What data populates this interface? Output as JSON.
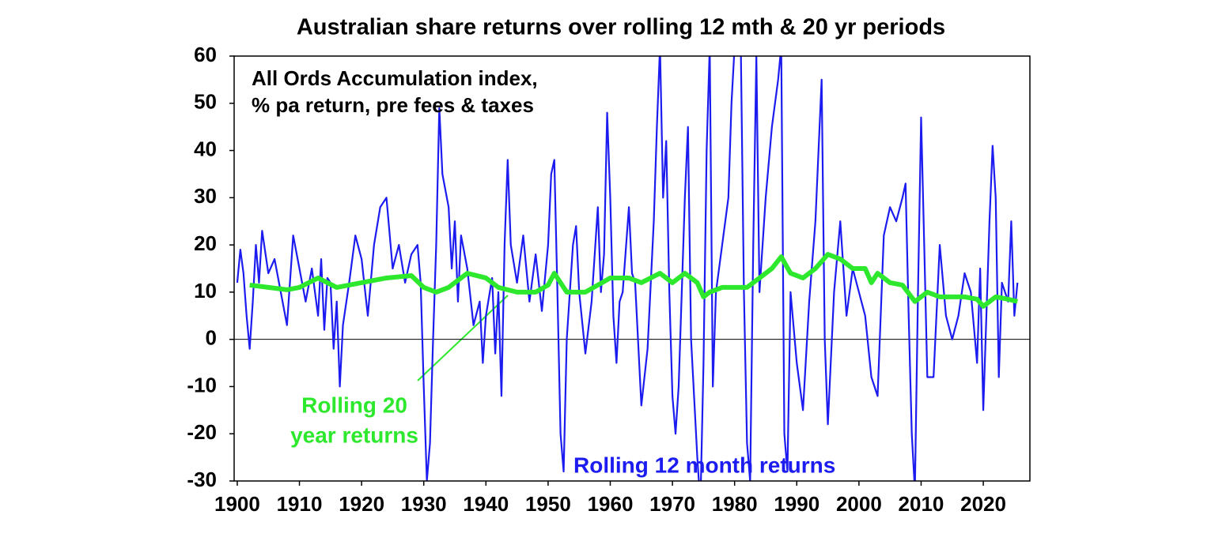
{
  "chart_data": {
    "type": "line",
    "title": "Australian share returns over rolling 12 mth & 20 yr periods",
    "annotation_lines": [
      "All Ords Accumulation index,",
      "% pa return, pre fees & taxes"
    ],
    "series_label_lines": [
      [
        "Rolling 20",
        "year returns"
      ],
      [
        "Rolling 12 month returns"
      ]
    ],
    "xlim": [
      1899.5,
      2027.5
    ],
    "ylim": [
      -30,
      60
    ],
    "xticks": [
      1900,
      1910,
      1920,
      1930,
      1940,
      1950,
      1960,
      1970,
      1980,
      1990,
      2000,
      2010,
      2020
    ],
    "yticks": [
      -30,
      -20,
      -10,
      0,
      10,
      20,
      30,
      40,
      50,
      60
    ],
    "series": [
      {
        "name": "Rolling 20 year returns",
        "color": "#2ee82e",
        "x": [
          1902,
          1905,
          1908,
          1910,
          1913,
          1916,
          1920,
          1924,
          1928,
          1930,
          1932,
          1934,
          1937,
          1940,
          1942,
          1945,
          1948,
          1950,
          1951,
          1953,
          1956,
          1958,
          1960,
          1963,
          1965,
          1968,
          1970,
          1972,
          1974,
          1975,
          1976,
          1978,
          1980,
          1982,
          1984,
          1986,
          1987.5,
          1989,
          1991,
          1993,
          1995,
          1997,
          1999,
          2001,
          2002,
          2003,
          2005,
          2007,
          2009,
          2011,
          2013,
          2015,
          2017,
          2019,
          2020,
          2022,
          2024,
          2025.5
        ],
        "values": [
          11.5,
          11,
          10.5,
          11,
          13,
          11,
          12,
          13,
          13.5,
          11,
          10,
          11,
          14,
          13,
          11,
          10,
          10,
          11.5,
          14,
          10,
          10,
          11.5,
          13,
          13,
          12,
          14,
          12,
          14,
          12,
          9,
          10,
          11,
          11,
          11,
          13,
          15,
          17.5,
          14,
          13,
          15,
          18,
          17,
          15,
          15,
          12,
          14,
          12,
          11.5,
          8,
          10,
          9,
          9,
          9,
          8.5,
          7,
          9,
          8.5,
          8
        ]
      },
      {
        "name": "Rolling 12 month returns",
        "color": "#1c1cf0",
        "x": [
          1900,
          1900.5,
          1901,
          1901.5,
          1902,
          1902.5,
          1903,
          1903.5,
          1904,
          1905,
          1906,
          1907,
          1908,
          1909,
          1910,
          1911,
          1912,
          1913,
          1913.5,
          1914,
          1914.5,
          1915,
          1915.5,
          1916,
          1916.5,
          1917,
          1918,
          1919,
          1920,
          1921,
          1922,
          1923,
          1924,
          1925,
          1926,
          1927,
          1928,
          1929,
          1929.5,
          1930,
          1930.5,
          1931,
          1931.5,
          1932,
          1932.5,
          1933,
          1934,
          1934.5,
          1935,
          1935.5,
          1936,
          1937,
          1938,
          1939,
          1939.5,
          1940,
          1941,
          1941.5,
          1942,
          1942.5,
          1943,
          1943.5,
          1944,
          1945,
          1946,
          1947,
          1948,
          1949,
          1950,
          1950.5,
          1951,
          1951.5,
          1952,
          1952.5,
          1953,
          1954,
          1954.5,
          1955,
          1956,
          1957,
          1958,
          1958.5,
          1959,
          1959.5,
          1960,
          1960.5,
          1961,
          1961.5,
          1962,
          1963,
          1963.5,
          1964,
          1965,
          1966,
          1967,
          1967.5,
          1968,
          1968.5,
          1969,
          1969.5,
          1970,
          1970.5,
          1971,
          1972,
          1972.5,
          1973,
          1974,
          1974.5,
          1975,
          1975.5,
          1976,
          1976.5,
          1977,
          1978,
          1979,
          1979.5,
          1980,
          1981,
          1981.5,
          1982,
          1982.5,
          1983,
          1983.5,
          1984,
          1985,
          1986,
          1987,
          1987.5,
          1988,
          1988.5,
          1989,
          1990,
          1991,
          1992,
          1993,
          1994,
          1994.5,
          1995,
          1996,
          1997,
          1998,
          1999,
          2000,
          2001,
          2002,
          2003,
          2004,
          2005,
          2006,
          2007,
          2007.5,
          2008,
          2008.5,
          2009,
          2009.5,
          2010,
          2010.5,
          2011,
          2012,
          2013,
          2014,
          2015,
          2016,
          2017,
          2018,
          2019,
          2019.5,
          2020,
          2020.5,
          2021,
          2021.5,
          2022,
          2022.5,
          2023,
          2024,
          2024.5,
          2025,
          2025.5
        ],
        "values": [
          12,
          19,
          14,
          5,
          -2,
          8,
          20,
          12,
          23,
          14,
          17,
          10,
          3,
          22,
          15,
          8,
          15,
          5,
          17,
          2,
          13,
          12,
          -2,
          8,
          -10,
          3,
          12,
          22,
          17,
          5,
          20,
          28,
          30,
          15,
          20,
          12,
          18,
          20,
          12,
          -10,
          -30,
          -22,
          0,
          20,
          49,
          35,
          28,
          15,
          25,
          8,
          22,
          15,
          3,
          8,
          -5,
          5,
          13,
          -3,
          10,
          -12,
          20,
          38,
          20,
          12,
          22,
          8,
          18,
          6,
          20,
          35,
          38,
          10,
          -20,
          -28,
          0,
          20,
          24,
          10,
          -3,
          8,
          28,
          10,
          18,
          48,
          30,
          5,
          -5,
          8,
          10,
          28,
          14,
          12,
          -14,
          -2,
          25,
          45,
          62,
          30,
          42,
          10,
          -12,
          -20,
          -10,
          30,
          45,
          0,
          -25,
          -35,
          -5,
          40,
          62,
          -10,
          10,
          20,
          30,
          50,
          62,
          62,
          10,
          -22,
          -30,
          20,
          60,
          10,
          30,
          45,
          55,
          62,
          -20,
          -28,
          10,
          -5,
          -15,
          8,
          25,
          55,
          0,
          -18,
          10,
          25,
          5,
          15,
          10,
          5,
          -8,
          -12,
          22,
          28,
          25,
          30,
          33,
          5,
          -20,
          -32,
          10,
          47,
          20,
          -8,
          -8,
          20,
          5,
          0,
          5,
          14,
          10,
          -5,
          15,
          -15,
          5,
          25,
          41,
          30,
          -8,
          12,
          8,
          25,
          5,
          12
        ]
      }
    ]
  }
}
